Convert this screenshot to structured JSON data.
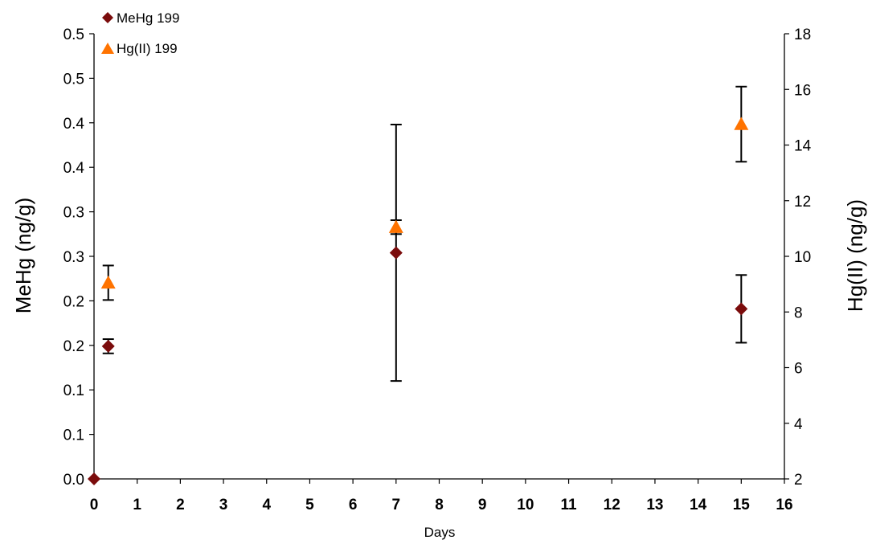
{
  "chart_data": {
    "type": "scatter",
    "title": "",
    "xlabel": "Days",
    "ylabel_left": "MeHg (ng/g)",
    "ylabel_right": "Hg(II) (ng/g)",
    "xlim": [
      0,
      16
    ],
    "x_ticks": [
      "0",
      "1",
      "2",
      "3",
      "4",
      "5",
      "6",
      "7",
      "8",
      "9",
      "10",
      "11",
      "12",
      "13",
      "14",
      "15",
      "16"
    ],
    "ylim_left": [
      0,
      0.5
    ],
    "y_ticks_left": [
      "0.0",
      "0.1",
      "0.1",
      "0.2",
      "0.2",
      "0.3",
      "0.3",
      "0.4",
      "0.4",
      "0.5",
      "0.5"
    ],
    "ylim_right": [
      2,
      18
    ],
    "y_ticks_right": [
      "2",
      "4",
      "6",
      "8",
      "10",
      "12",
      "14",
      "16",
      "18"
    ],
    "grid": false,
    "legend_position": "top-left",
    "series": [
      {
        "name": "MeHg 199",
        "axis": "left",
        "marker": "diamond",
        "color": "#7B0C0C",
        "points": [
          {
            "x": 0,
            "y": 0.0,
            "err": 0
          },
          {
            "x": 0.33,
            "y": 0.149,
            "err": 0.008
          },
          {
            "x": 7,
            "y": 0.254,
            "err": 0.144
          },
          {
            "x": 15,
            "y": 0.191,
            "err": 0.038
          }
        ]
      },
      {
        "name": "Hg(II) 199",
        "axis": "right",
        "marker": "triangle",
        "color": "#FF7300",
        "points": [
          {
            "x": 0.33,
            "y": 9.05,
            "err": 0.62
          },
          {
            "x": 7,
            "y": 11.05,
            "err": 0.25
          },
          {
            "x": 15,
            "y": 14.75,
            "err": 1.35
          }
        ]
      }
    ]
  }
}
